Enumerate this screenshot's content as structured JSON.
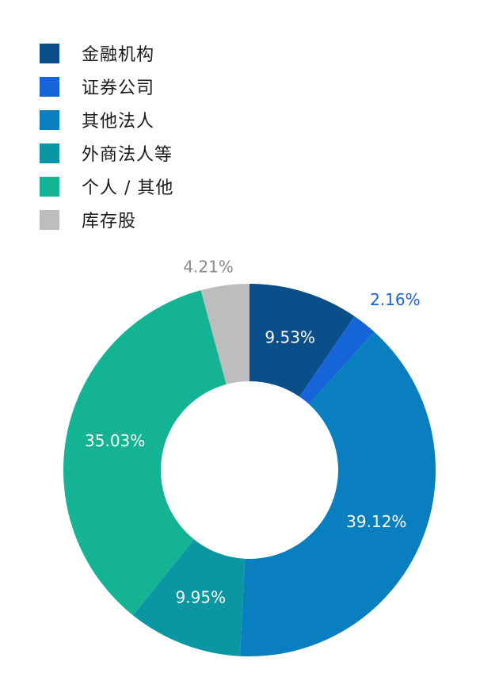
{
  "chart_data": {
    "type": "pie",
    "donut": true,
    "legend_position": "top-left",
    "categories": [
      "金融机构",
      "证券公司",
      "其他法人",
      "外商法人等",
      "个人 / 其他",
      "库存股"
    ],
    "values": [
      9.53,
      2.16,
      39.12,
      9.95,
      35.03,
      4.21
    ],
    "labels": [
      "9.53%",
      "2.16%",
      "39.12%",
      "9.95%",
      "35.03%",
      "4.21%"
    ],
    "colors": [
      "#0b4f8a",
      "#1565d8",
      "#0a7fbf",
      "#0a97a3",
      "#14b394",
      "#bdbdbd"
    ],
    "label_colors": [
      "#ffffff",
      "#1565d8",
      "#ffffff",
      "#ffffff",
      "#ffffff",
      "#8a8a8a"
    ]
  }
}
